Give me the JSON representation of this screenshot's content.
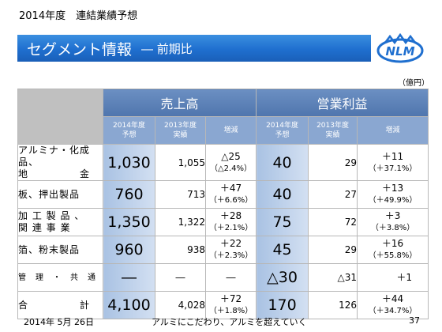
{
  "header": {
    "top_note": "2014年度　連結業績予想",
    "title": "セグメント情報",
    "subtitle": "― 前期比",
    "logo_text": "NLM",
    "unit": "（億円）"
  },
  "table": {
    "group_sales": "売上高",
    "group_profit": "営業利益",
    "sub_cols": [
      "2014年度\n予想",
      "2013年度\n実績",
      "増減",
      "2014年度\n予想",
      "2013年度\n実績",
      "増減"
    ],
    "rows": [
      {
        "label": "アルミナ・化成品、\n地　　　　　金",
        "s14": "1,030",
        "s13": "1,055",
        "sd1": "△25",
        "sd2": "（△2.4%）",
        "p14": "40",
        "p13": "29",
        "pd1": "＋11",
        "pd2": "（＋37.1%）"
      },
      {
        "label": "板、押出製品",
        "s14": "760",
        "s13": "713",
        "sd1": "＋47",
        "sd2": "（＋6.6%）",
        "p14": "40",
        "p13": "27",
        "pd1": "＋13",
        "pd2": "（＋49.9%）"
      },
      {
        "label": "加 工 製 品 、\n関 連 事 業",
        "s14": "1,350",
        "s13": "1,322",
        "sd1": "＋28",
        "sd2": "（＋2.1%）",
        "p14": "75",
        "p13": "72",
        "pd1": "＋3",
        "pd2": "（＋3.8%）"
      },
      {
        "label": "箔、粉末製品",
        "s14": "960",
        "s13": "938",
        "sd1": "＋22",
        "sd2": "（＋2.3%）",
        "p14": "45",
        "p13": "29",
        "pd1": "＋16",
        "pd2": "（＋55.8%）"
      },
      {
        "label": "管　理　・　共　通",
        "s14": "―",
        "s13": "―",
        "sd1": "―",
        "sd2": "",
        "p14": "△30",
        "p13": "△31",
        "pd1": "＋1",
        "pd2": ""
      },
      {
        "label": "合　　　　　計",
        "s14": "4,100",
        "s13": "4,028",
        "sd1": "＋72",
        "sd2": "（＋1.8%）",
        "p14": "170",
        "p13": "126",
        "pd1": "＋44",
        "pd2": "（＋34.7%）"
      }
    ]
  },
  "footer": {
    "date": "2014年 5月 26日",
    "slogan": "アルミにこだわり、アルミを超えていく",
    "page": "37"
  },
  "colors": {
    "banner": "#1f6fcf",
    "header_blue": "#5a7fb5",
    "sub_header": "#8aa7d1",
    "highlight": "#a9c2e3"
  }
}
